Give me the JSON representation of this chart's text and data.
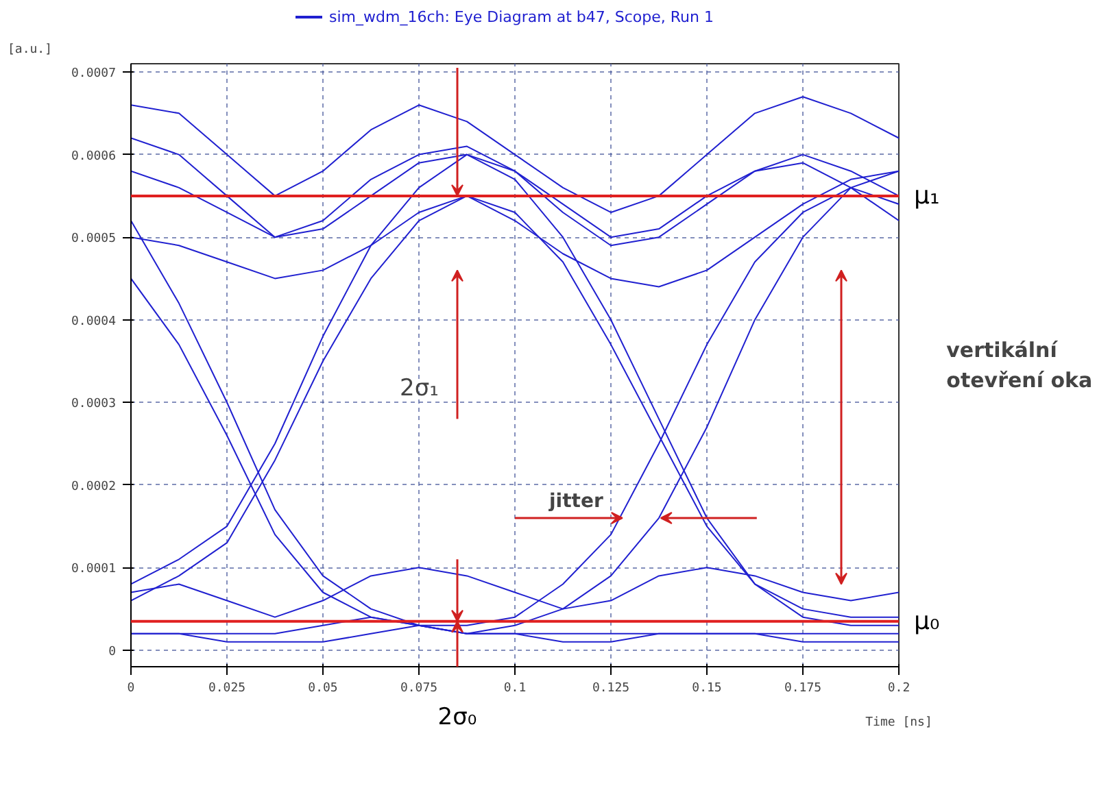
{
  "chart_data": {
    "type": "line",
    "xlabel": "Time [ns]",
    "ylabel": "[a.u.]",
    "x": [
      0,
      0.0125,
      0.025,
      0.0375,
      0.05,
      0.0625,
      0.075,
      0.0875,
      0.1,
      0.1125,
      0.125,
      0.1375,
      0.15,
      0.1625,
      0.175,
      0.1875,
      0.2
    ],
    "series": [
      {
        "name": "sim_wdm_16ch: Eye Diagram at b47, Scope, Run 1",
        "color": "#2020d0",
        "values": [
          0.00062,
          0.0006,
          0.00055,
          0.0005,
          0.00052,
          0.00057,
          0.0006,
          0.00061,
          0.00058,
          0.00053,
          0.00049,
          0.0005,
          0.00054,
          0.00058,
          0.0006,
          0.00058,
          0.00055
        ]
      },
      {
        "color": "#2020d0",
        "values": [
          0.00066,
          0.00065,
          0.0006,
          0.00055,
          0.00058,
          0.00063,
          0.00066,
          0.00064,
          0.0006,
          0.00056,
          0.00053,
          0.00055,
          0.0006,
          0.00065,
          0.00067,
          0.00065,
          0.00062
        ]
      },
      {
        "color": "#2020d0",
        "values": [
          0.0005,
          0.00049,
          0.00047,
          0.00045,
          0.00046,
          0.00049,
          0.00053,
          0.00055,
          0.00052,
          0.00048,
          0.00045,
          0.00044,
          0.00046,
          0.0005,
          0.00054,
          0.00057,
          0.00058
        ]
      },
      {
        "color": "#2020d0",
        "values": [
          2e-05,
          2e-05,
          1e-05,
          1e-05,
          1e-05,
          2e-05,
          3e-05,
          2e-05,
          2e-05,
          1e-05,
          1e-05,
          2e-05,
          2e-05,
          2e-05,
          1e-05,
          1e-05,
          1e-05
        ]
      },
      {
        "color": "#2020d0",
        "values": [
          7e-05,
          8e-05,
          6e-05,
          4e-05,
          6e-05,
          9e-05,
          0.0001,
          9e-05,
          7e-05,
          5e-05,
          6e-05,
          9e-05,
          0.0001,
          9e-05,
          7e-05,
          6e-05,
          7e-05
        ]
      },
      {
        "color": "#2020d0",
        "values": [
          0.00045,
          0.00037,
          0.00026,
          0.00014,
          7e-05,
          4e-05,
          3e-05,
          3e-05,
          4e-05,
          8e-05,
          0.00014,
          0.00025,
          0.00037,
          0.00047,
          0.00053,
          0.00056,
          0.00054
        ]
      },
      {
        "color": "#2020d0",
        "values": [
          6e-05,
          9e-05,
          0.00013,
          0.00023,
          0.00035,
          0.00045,
          0.00052,
          0.00055,
          0.00053,
          0.00047,
          0.00037,
          0.00026,
          0.00015,
          8e-05,
          5e-05,
          4e-05,
          4e-05
        ]
      },
      {
        "color": "#2020d0",
        "values": [
          8e-05,
          0.00011,
          0.00015,
          0.00025,
          0.00038,
          0.00049,
          0.00056,
          0.0006,
          0.00058,
          0.00054,
          0.0005,
          0.00051,
          0.00055,
          0.00058,
          0.00059,
          0.00056,
          0.00052
        ]
      },
      {
        "color": "#2020d0",
        "values": [
          0.00052,
          0.00042,
          0.0003,
          0.00017,
          9e-05,
          5e-05,
          3e-05,
          2e-05,
          2e-05,
          2e-05,
          2e-05,
          2e-05,
          2e-05,
          2e-05,
          2e-05,
          2e-05,
          2e-05
        ]
      },
      {
        "color": "#2020d0",
        "values": [
          2e-05,
          2e-05,
          2e-05,
          2e-05,
          3e-05,
          4e-05,
          3e-05,
          2e-05,
          3e-05,
          5e-05,
          9e-05,
          0.00016,
          0.00027,
          0.0004,
          0.0005,
          0.00056,
          0.00058
        ]
      },
      {
        "color": "#2020d0",
        "values": [
          0.00058,
          0.00056,
          0.00053,
          0.0005,
          0.00051,
          0.00055,
          0.00059,
          0.0006,
          0.00057,
          0.0005,
          0.0004,
          0.00028,
          0.00016,
          8e-05,
          4e-05,
          3e-05,
          3e-05
        ]
      }
    ],
    "xlim": [
      0,
      0.2
    ],
    "ylim": [
      -2e-05,
      0.00071
    ],
    "xticks": [
      0,
      0.025,
      0.05,
      0.075,
      0.1,
      0.125,
      0.15,
      0.175,
      0.2
    ],
    "yticks": [
      0,
      0.0001,
      0.0002,
      0.0003,
      0.0004,
      0.0005,
      0.0006,
      0.0007
    ],
    "ref_lines": [
      {
        "axis": "y",
        "value": 0.00055,
        "label": "μ₁",
        "color": "#e02020"
      },
      {
        "axis": "y",
        "value": 3.5e-05,
        "label": "μ₀",
        "color": "#e02020"
      }
    ],
    "annotations": [
      "2σ₁",
      "2σ₀",
      {
        "text": "jitter",
        "x": 0.1375,
        "y": 0.00016
      },
      "vertikální\notevření oka"
    ],
    "grid": true,
    "legend": "top",
    "marker": "none",
    "line_style": "solid"
  }
}
